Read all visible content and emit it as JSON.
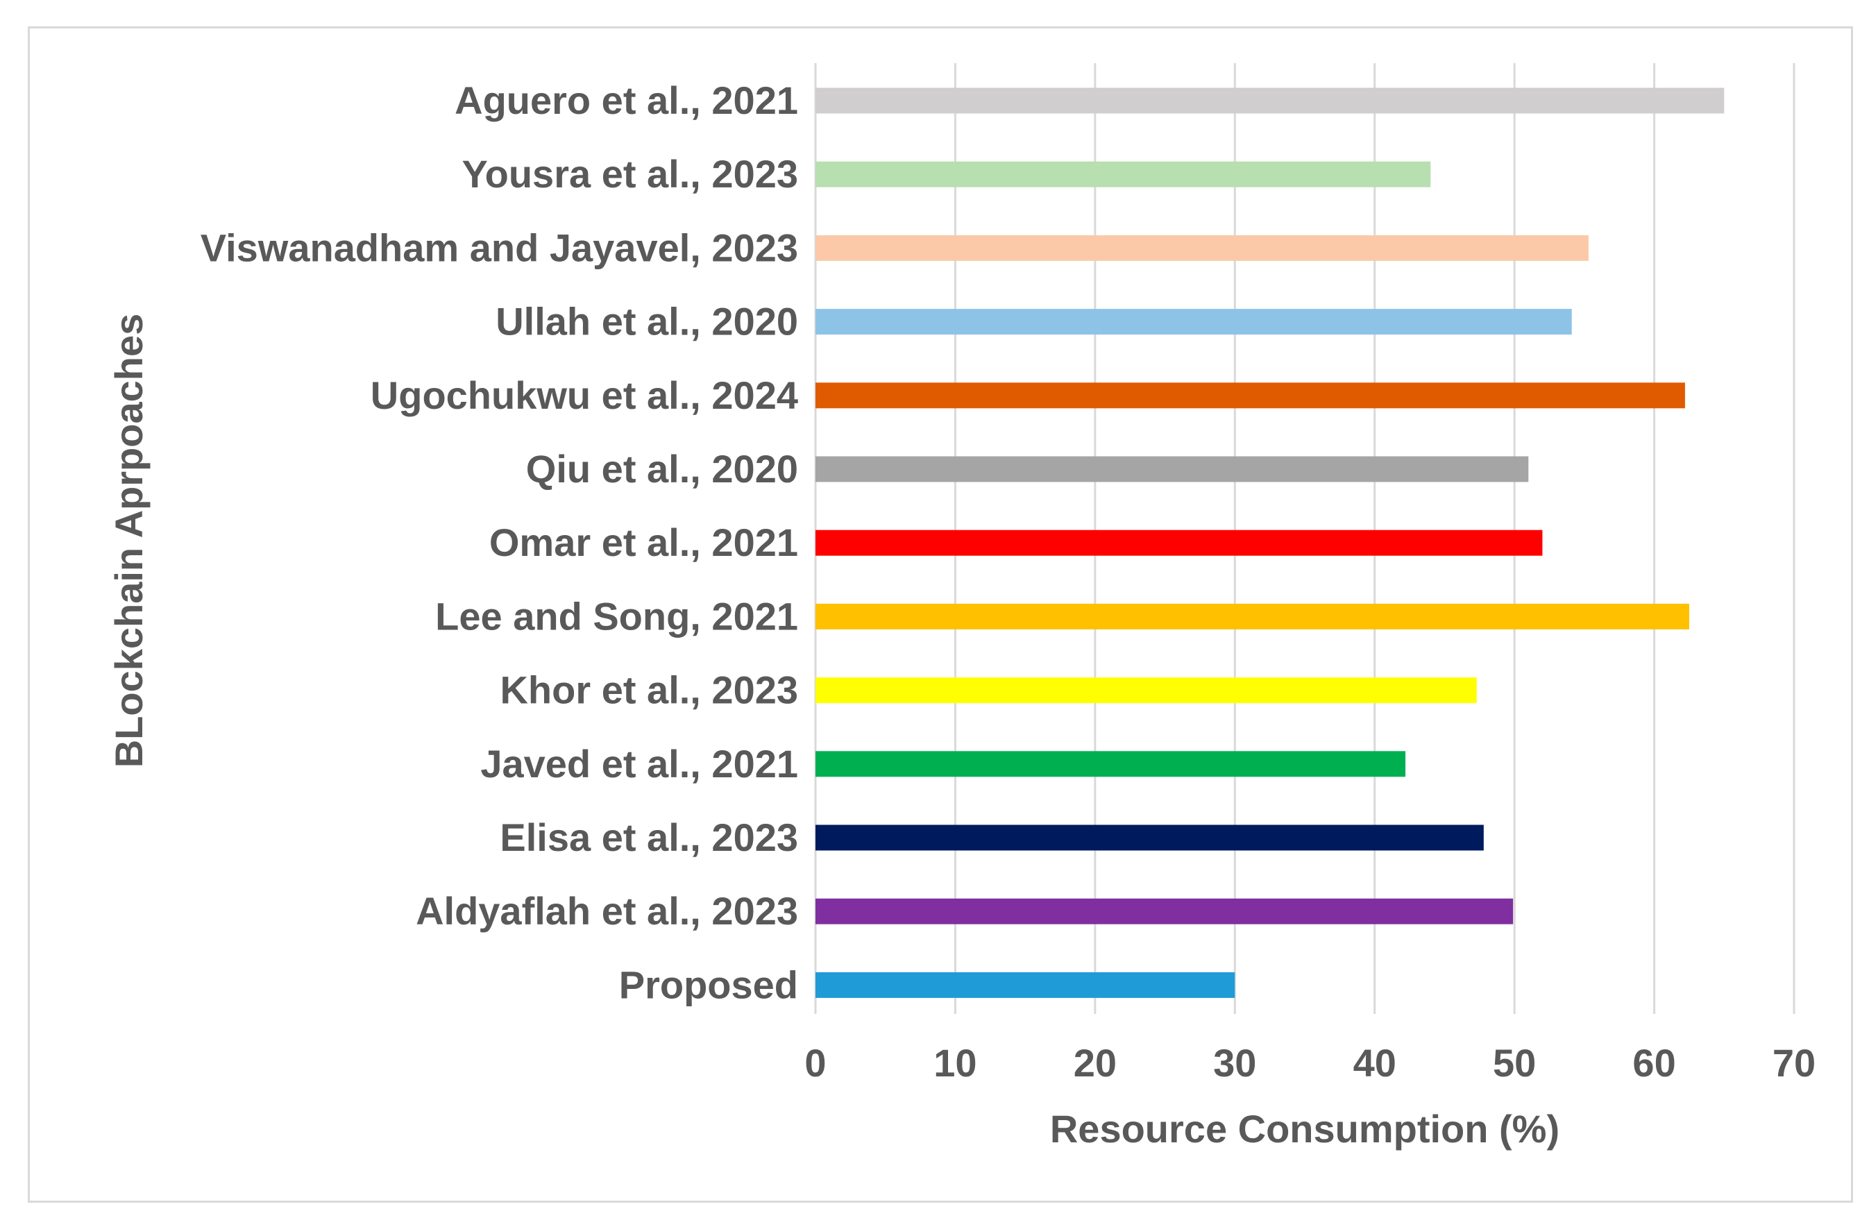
{
  "chart_data": {
    "type": "bar",
    "orientation": "horizontal",
    "title": "",
    "xlabel": "Resource Consumption (%)",
    "ylabel": "BLockchain Aprpoaches",
    "xlim": [
      0,
      70
    ],
    "xticks": [
      "0",
      "10",
      "20",
      "30",
      "40",
      "50",
      "60",
      "70"
    ],
    "grid": true,
    "categories": [
      "Aguero et al., 2021",
      "Yousra et al., 2023",
      "Viswanadham and Jayavel, 2023",
      "Ullah et al., 2020",
      "Ugochukwu et al., 2024",
      "Qiu et al., 2020",
      "Omar et al., 2021",
      "Lee and Song, 2021",
      "Khor et al., 2023",
      "Javed et al., 2021",
      "Elisa et al., 2023",
      "Aldyaflah et al., 2023",
      "Proposed"
    ],
    "values": [
      65,
      44,
      55.3,
      54.1,
      62.2,
      51,
      52,
      62.5,
      47.3,
      42.2,
      47.8,
      49.9,
      30
    ],
    "colors": [
      "#d0cece",
      "#b7dfb0",
      "#fcc9a8",
      "#8ec3e8",
      "#e05a00",
      "#a5a5a5",
      "#ff0000",
      "#ffc000",
      "#ffff00",
      "#00b050",
      "#001a5e",
      "#7f2fa0",
      "#1f9bd7"
    ]
  }
}
